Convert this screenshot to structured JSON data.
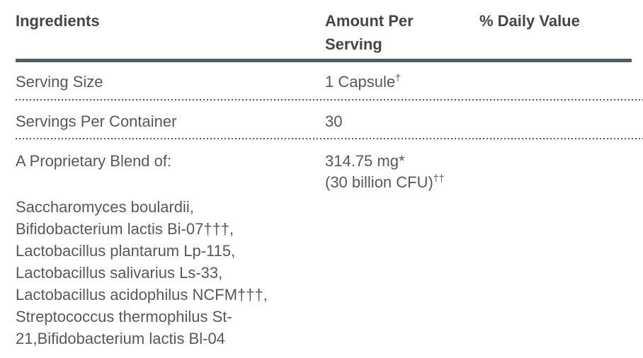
{
  "table": {
    "headers": {
      "ingredients": "Ingredients",
      "amount_per_serving": "Amount Per Serving",
      "daily_value": "% Daily Value"
    },
    "serving_size": {
      "label": "Serving Size",
      "value": "1 Capsule",
      "footnote_mark": "†"
    },
    "servings_per_container": {
      "label": "Servings Per Container",
      "value": "30"
    },
    "proprietary_blend": {
      "label": "A Proprietary Blend of:",
      "amount": "314.75 mg*",
      "cfu": "(30 billion CFU)",
      "cfu_footnote_mark": "††",
      "ingredients": [
        "Saccharomyces boulardii,",
        "Bifidobacterium lactis Bi-07†††,",
        "Lactobacillus plantarum Lp-115,",
        "Lactobacillus salivarius Ls-33,",
        "Lactobacillus acidophilus NCFM†††,",
        "Streptococcus thermophilus St-",
        "21,Bifidobacterium lactis Bl-04"
      ]
    },
    "colors": {
      "rule": "#515d67",
      "dotted_rule": "#4f5b66",
      "header_text": "#464646",
      "body_text": "#57585a"
    }
  }
}
